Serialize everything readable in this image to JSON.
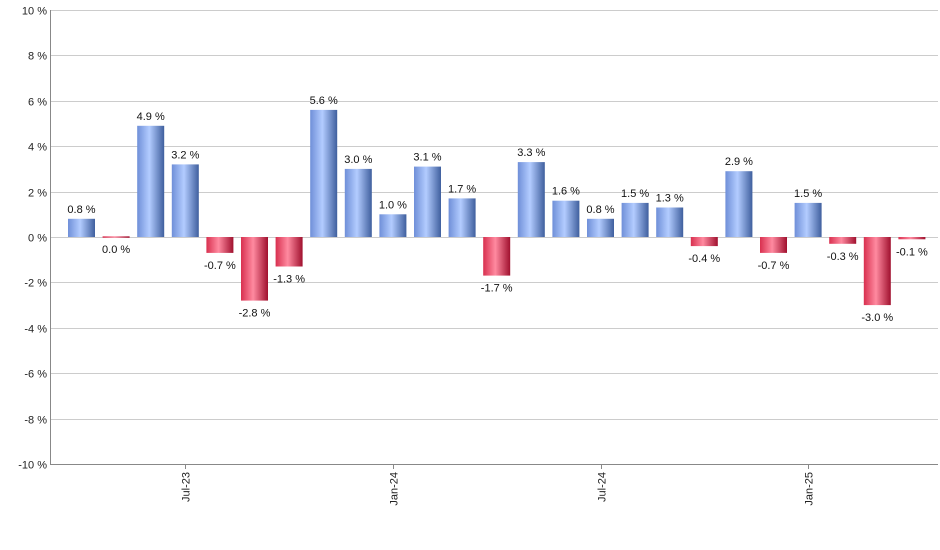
{
  "chart_data": {
    "type": "bar",
    "title": "",
    "xlabel": "",
    "ylabel": "",
    "ylim": [
      -10,
      10
    ],
    "ytick_step": 2,
    "ytick_suffix": " %",
    "grid": true,
    "legend": "none",
    "x_tick_labels": [
      {
        "label": "Jul-23",
        "index": 3
      },
      {
        "label": "Jan-24",
        "index": 9
      },
      {
        "label": "Jul-24",
        "index": 15
      },
      {
        "label": "Jan-25",
        "index": 21
      }
    ],
    "values": [
      0.8,
      0.0,
      4.9,
      3.2,
      -0.7,
      -2.8,
      -1.3,
      5.6,
      3.0,
      1.0,
      3.1,
      1.7,
      -1.7,
      3.3,
      1.6,
      0.8,
      1.5,
      1.3,
      -0.4,
      2.9,
      -0.7,
      1.5,
      -0.3,
      -3.0,
      -0.1
    ],
    "value_labels": [
      "0.8 %",
      "0.0 %",
      "4.9 %",
      "3.2 %",
      "-0.7 %",
      "-2.8 %",
      "-1.3 %",
      "5.6 %",
      "3.0 %",
      "1.0 %",
      "3.1 %",
      "1.7 %",
      "-1.7 %",
      "3.3 %",
      "1.6 %",
      "0.8 %",
      "1.5 %",
      "1.3 %",
      "-0.4 %",
      "2.9 %",
      "-0.7 %",
      "1.5 %",
      "-0.3 %",
      "-3.0 %",
      "-0.1 %"
    ],
    "colors": {
      "positive_light": "#a9c3ff",
      "positive_dark": "#3f5f9e",
      "negative_light": "#ff7a93",
      "negative_dark": "#a0102e",
      "grid": "#cccccc",
      "axis": "#888888"
    }
  }
}
